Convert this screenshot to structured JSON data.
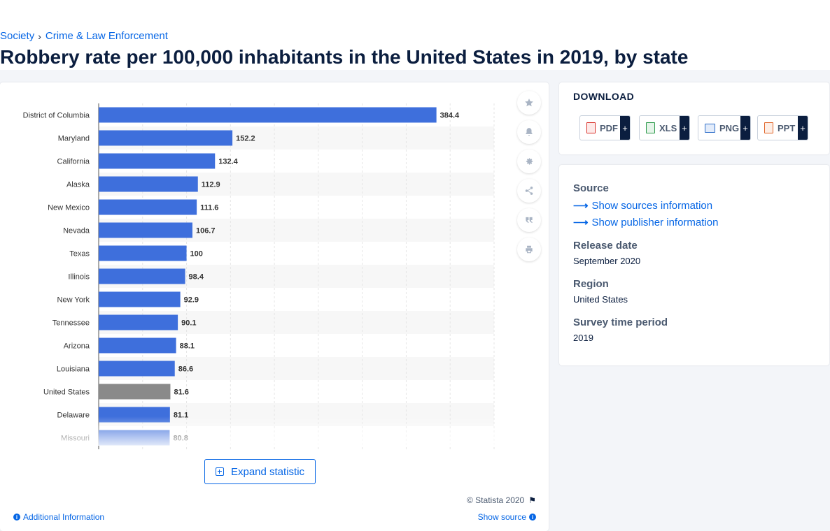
{
  "breadcrumb": {
    "items": [
      "Society",
      "Crime & Law Enforcement"
    ],
    "separator": "›"
  },
  "title": "Robbery rate per 100,000 inhabitants in the United States in 2019, by state",
  "chart_data": {
    "type": "bar",
    "orientation": "horizontal",
    "categories": [
      "District of Columbia",
      "Maryland",
      "California",
      "Alaska",
      "New Mexico",
      "Nevada",
      "Texas",
      "Illinois",
      "New York",
      "Tennessee",
      "Arizona",
      "Louisiana",
      "United States",
      "Delaware",
      "Missouri"
    ],
    "values": [
      384.4,
      152.2,
      132.4,
      112.9,
      111.6,
      106.7,
      100,
      98.4,
      92.9,
      90.1,
      88.1,
      86.6,
      81.6,
      81.1,
      80.8
    ],
    "value_labels": [
      "384.4",
      "152.2",
      "132.4",
      "112.9",
      "111.6",
      "106.7",
      "100",
      "98.4",
      "92.9",
      "90.1",
      "88.1",
      "86.6",
      "81.6",
      "81.1",
      "80.8"
    ],
    "highlight_category": "United States",
    "bar_color": "#3e6fdc",
    "highlight_color": "#8a8a8a",
    "xlim": [
      0,
      450
    ],
    "grid": true,
    "faded_last_row": true
  },
  "toolbar": {
    "icons": [
      "star-icon",
      "bell-icon",
      "gear-icon",
      "share-icon",
      "quote-icon",
      "print-icon"
    ]
  },
  "expand_label": "Expand statistic",
  "copyright": "© Statista 2020",
  "additional_info": "Additional Information",
  "show_source": "Show source",
  "download": {
    "title": "DOWNLOAD",
    "buttons": [
      {
        "label": "PDF",
        "plus": "+",
        "color": "#d9322b"
      },
      {
        "label": "XLS",
        "plus": "+",
        "color": "#2c9a4a"
      },
      {
        "label": "PNG",
        "plus": "+",
        "color": "#2f6fc9"
      },
      {
        "label": "PPT",
        "plus": "+",
        "color": "#e0662a"
      }
    ]
  },
  "details": {
    "source_label": "Source",
    "sources_link": "Show sources information",
    "publisher_link": "Show publisher information",
    "release_label": "Release date",
    "release_value": "September 2020",
    "region_label": "Region",
    "region_value": "United States",
    "survey_label": "Survey time period",
    "survey_value": "2019"
  }
}
